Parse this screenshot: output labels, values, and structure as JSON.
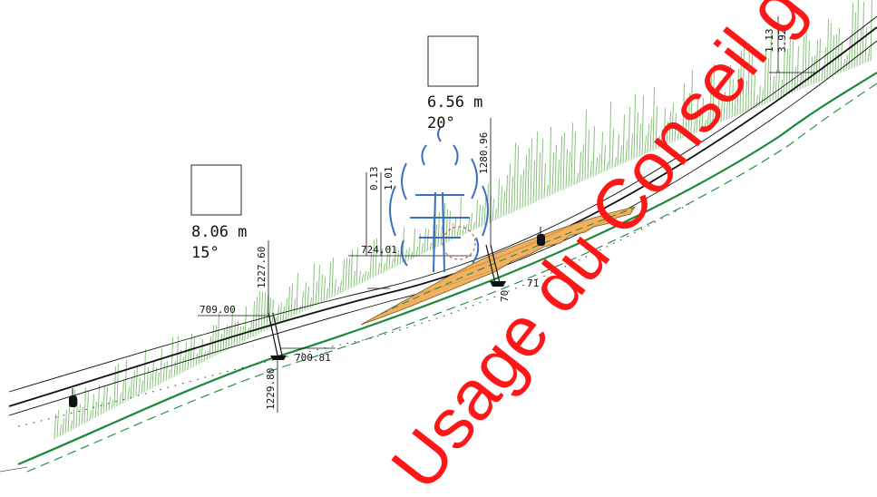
{
  "colors": {
    "background": "#ffffff",
    "terrain": "#1a8a3a",
    "vegetation": "#86c27a",
    "fill_section": "#f0a850",
    "structure": "#3a6fbf",
    "cable": "#111111",
    "watermark": "#ff1616"
  },
  "icons": [
    "cable-car-cabin-icon",
    "pylon-base-icon",
    "pylon-structure-icon"
  ],
  "tower_markers": [
    {
      "height": "8.06 m",
      "angle": "15°"
    },
    {
      "height": "6.56 m",
      "angle": "20°"
    }
  ],
  "labels": {
    "elev_709": "709.00",
    "elev_700": "700.81",
    "elev_724": "724.01",
    "chain_1227": "1227.60",
    "chain_1229": "1229.80",
    "chain_1280": "1280.96",
    "dim_013": "0.13",
    "dim_101": "1.01",
    "dim_113": "1.13",
    "dim_392": "3.92",
    "num_70": "70",
    "num_71": "71"
  },
  "watermark": "Usage du Conseil ge"
}
